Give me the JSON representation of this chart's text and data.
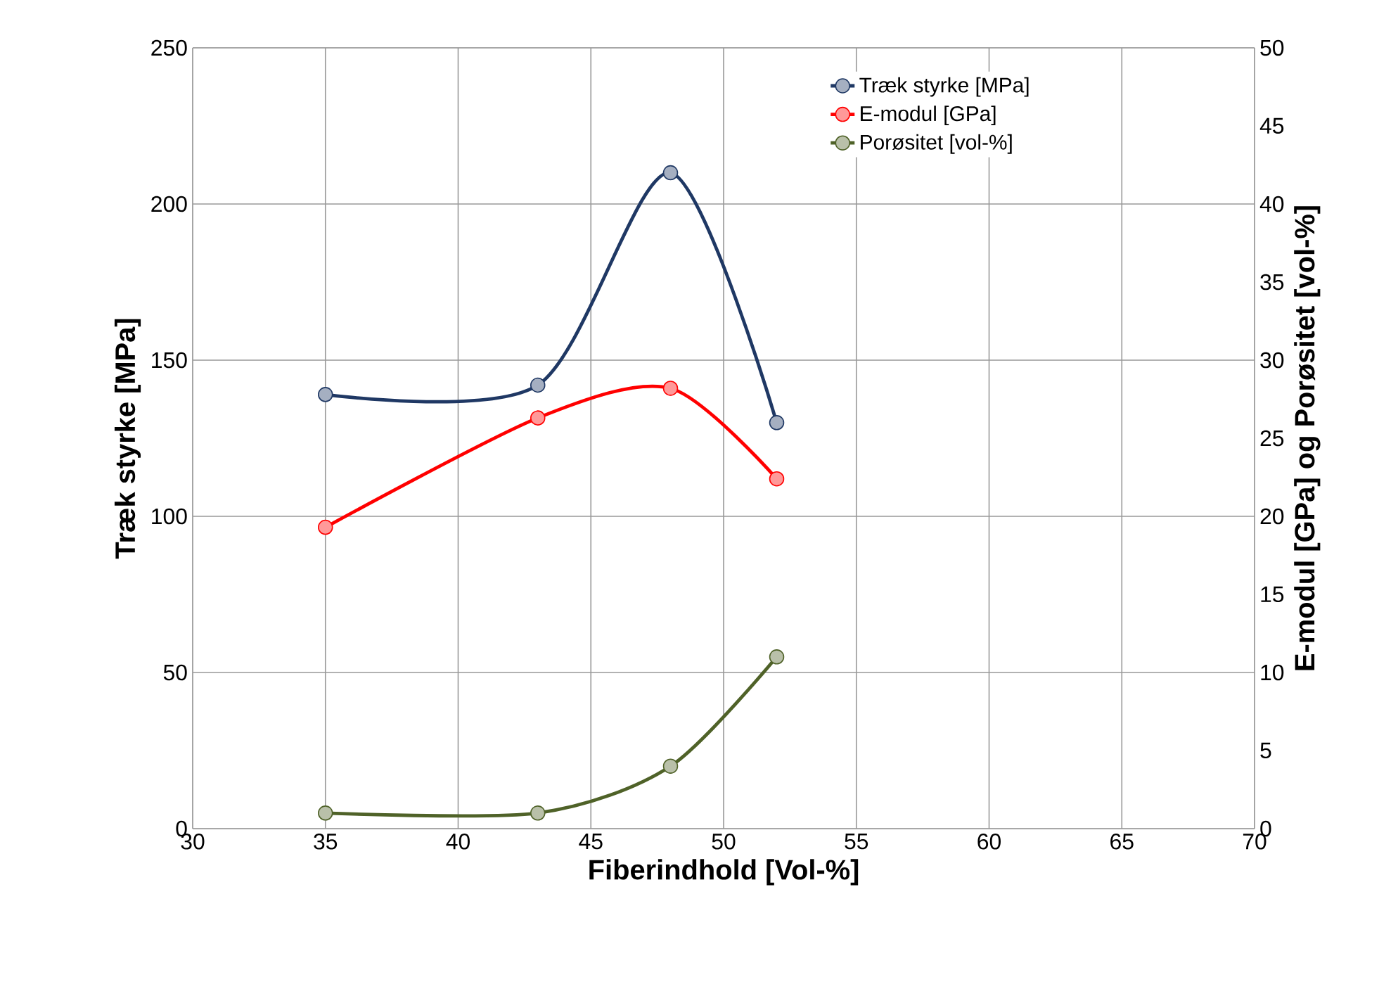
{
  "chart_data": {
    "type": "line",
    "xlabel": "Fiberindhold [Vol-%]",
    "ylabel": "Træk styrke [MPa]",
    "y2label": "E-modul [GPa] og Porøsitet [vol-%]",
    "x": [
      35,
      43,
      48,
      52
    ],
    "xlim": [
      30,
      70
    ],
    "xticks": [
      30,
      35,
      40,
      45,
      50,
      55,
      60,
      65,
      70
    ],
    "ylim": [
      0,
      250
    ],
    "yticks": [
      0,
      50,
      100,
      150,
      200,
      250
    ],
    "y2lim": [
      0,
      50
    ],
    "y2ticks": [
      0,
      5,
      10,
      15,
      20,
      25,
      30,
      35,
      40,
      45,
      50
    ],
    "grid": true,
    "legend": "top right",
    "marker": "circle",
    "series": [
      {
        "name": "Træk styrke [MPa]",
        "color": "#1f3864",
        "values": [
          139,
          142,
          210,
          130
        ]
      },
      {
        "name": "E-modul [GPa]",
        "color": "#ff0000",
        "values": [
          19.3,
          26.3,
          28.2,
          22.4
        ],
        "axis": "y2"
      },
      {
        "name": "Porøsitet [vol-%]",
        "color": "#4f6228",
        "values": [
          1.0,
          1.0,
          4.0,
          11.0
        ],
        "axis": "y2"
      }
    ]
  }
}
